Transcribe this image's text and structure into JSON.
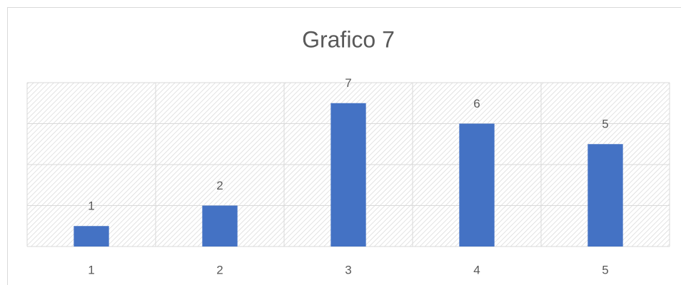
{
  "chart_data": {
    "type": "bar",
    "title": "Grafico 7",
    "categories": [
      "1",
      "2",
      "3",
      "4",
      "5"
    ],
    "values": [
      1,
      2,
      7,
      6,
      5
    ],
    "color": "#4472c4",
    "ylim": [
      0,
      8
    ],
    "yticks": [
      0,
      2,
      4,
      6,
      8
    ],
    "grid": true
  }
}
